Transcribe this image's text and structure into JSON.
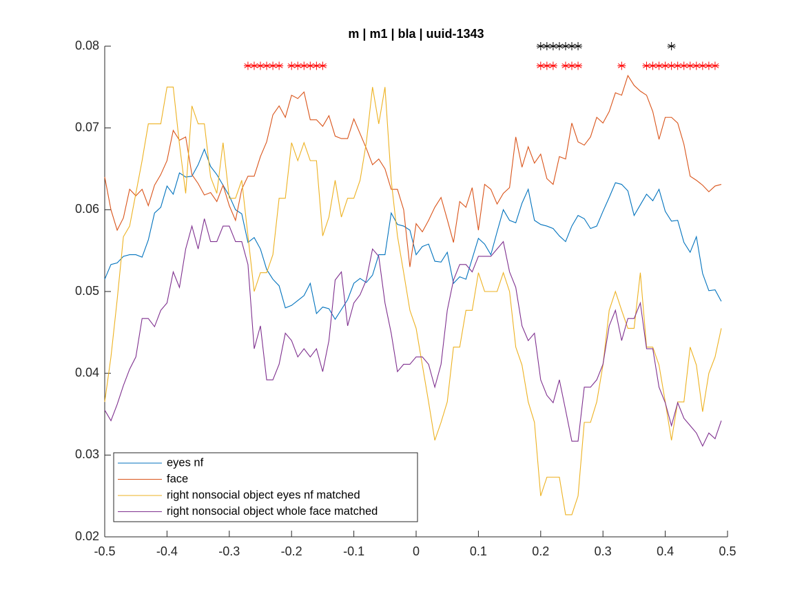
{
  "chart_data": {
    "type": "line",
    "title": "m | m1 | bla | uuid-1343",
    "x": [
      -0.5,
      -0.49,
      -0.48,
      -0.47,
      -0.46,
      -0.45,
      -0.44,
      -0.43,
      -0.42,
      -0.41,
      -0.4,
      -0.39,
      -0.38,
      -0.37,
      -0.36,
      -0.35,
      -0.34,
      -0.33,
      -0.32,
      -0.31,
      -0.3,
      -0.29,
      -0.28,
      -0.27,
      -0.26,
      -0.25,
      -0.24,
      -0.23,
      -0.22,
      -0.21,
      -0.2,
      -0.19,
      -0.18,
      -0.17,
      -0.16,
      -0.15,
      -0.14,
      -0.13,
      -0.12,
      -0.11,
      -0.1,
      -0.09,
      -0.08,
      -0.07,
      -0.06,
      -0.05,
      -0.04,
      -0.03,
      -0.02,
      -0.01,
      0,
      0.01,
      0.02,
      0.03,
      0.04,
      0.05,
      0.06,
      0.07,
      0.08,
      0.09,
      0.1,
      0.11,
      0.12,
      0.13,
      0.14,
      0.15,
      0.16,
      0.17,
      0.18,
      0.19,
      0.2,
      0.21,
      0.22,
      0.23,
      0.24,
      0.25,
      0.26,
      0.27,
      0.28,
      0.29,
      0.3,
      0.31,
      0.32,
      0.33,
      0.34,
      0.35,
      0.36,
      0.37,
      0.38,
      0.39,
      0.4,
      0.41,
      0.42,
      0.43,
      0.44,
      0.45,
      0.46,
      0.47,
      0.48,
      0.49
    ],
    "series": [
      {
        "name": "eyes nf",
        "color": "#0072BD",
        "values": [
          0.0515,
          0.0533,
          0.0535,
          0.0543,
          0.0545,
          0.0545,
          0.0542,
          0.0563,
          0.0596,
          0.0603,
          0.0629,
          0.0619,
          0.0645,
          0.064,
          0.0641,
          0.0655,
          0.0674,
          0.0653,
          0.0643,
          0.063,
          0.0617,
          0.06,
          0.0595,
          0.056,
          0.0566,
          0.0552,
          0.0527,
          0.0515,
          0.0507,
          0.048,
          0.0483,
          0.0489,
          0.0495,
          0.051,
          0.0473,
          0.0481,
          0.0479,
          0.0466,
          0.0478,
          0.049,
          0.051,
          0.0516,
          0.0511,
          0.052,
          0.0545,
          0.0545,
          0.0596,
          0.0582,
          0.058,
          0.0575,
          0.0545,
          0.0555,
          0.0558,
          0.0537,
          0.0536,
          0.0548,
          0.051,
          0.0518,
          0.0515,
          0.054,
          0.0565,
          0.0558,
          0.0545,
          0.0573,
          0.06,
          0.0587,
          0.0584,
          0.0608,
          0.0625,
          0.0587,
          0.0582,
          0.058,
          0.0577,
          0.0568,
          0.0561,
          0.058,
          0.0593,
          0.0589,
          0.0577,
          0.058,
          0.0598,
          0.0615,
          0.0633,
          0.0631,
          0.0623,
          0.0593,
          0.0606,
          0.0619,
          0.0611,
          0.0625,
          0.0598,
          0.0586,
          0.0587,
          0.056,
          0.0548,
          0.0567,
          0.0522,
          0.0501,
          0.0502,
          0.0488
        ]
      },
      {
        "name": "face",
        "color": "#D95319",
        "values": [
          0.064,
          0.06,
          0.0575,
          0.059,
          0.0625,
          0.0617,
          0.0625,
          0.0605,
          0.063,
          0.0643,
          0.066,
          0.0697,
          0.0685,
          0.0689,
          0.0643,
          0.0632,
          0.0618,
          0.0621,
          0.061,
          0.063,
          0.0605,
          0.0587,
          0.0625,
          0.0641,
          0.0641,
          0.0665,
          0.0683,
          0.0716,
          0.0727,
          0.0713,
          0.074,
          0.0736,
          0.0744,
          0.071,
          0.071,
          0.0702,
          0.0715,
          0.069,
          0.0687,
          0.0687,
          0.0711,
          0.0693,
          0.0675,
          0.0655,
          0.0662,
          0.065,
          0.0625,
          0.0625,
          0.06,
          0.053,
          0.0583,
          0.0573,
          0.0587,
          0.0603,
          0.0615,
          0.0588,
          0.056,
          0.061,
          0.0603,
          0.0627,
          0.0575,
          0.0631,
          0.0625,
          0.0607,
          0.062,
          0.0627,
          0.0689,
          0.0652,
          0.0677,
          0.0657,
          0.0668,
          0.0638,
          0.0631,
          0.0665,
          0.0662,
          0.0706,
          0.0683,
          0.0679,
          0.0689,
          0.0713,
          0.0706,
          0.072,
          0.0743,
          0.074,
          0.0764,
          0.0752,
          0.0745,
          0.074,
          0.072,
          0.0686,
          0.0713,
          0.0713,
          0.0706,
          0.068,
          0.0641,
          0.0636,
          0.063,
          0.0622,
          0.0629,
          0.0631
        ]
      },
      {
        "name": "right nonsocial object eyes nf matched",
        "color": "#EDB120",
        "values": [
          0.0365,
          0.042,
          0.049,
          0.0567,
          0.058,
          0.062,
          0.066,
          0.0705,
          0.0705,
          0.0705,
          0.075,
          0.075,
          0.068,
          0.062,
          0.0727,
          0.0705,
          0.0705,
          0.064,
          0.062,
          0.0682,
          0.0614,
          0.0614,
          0.0636,
          0.0568,
          0.05,
          0.0523,
          0.0523,
          0.0545,
          0.0614,
          0.0614,
          0.0682,
          0.066,
          0.0682,
          0.066,
          0.066,
          0.0568,
          0.0591,
          0.0636,
          0.0591,
          0.0614,
          0.0614,
          0.0636,
          0.0682,
          0.075,
          0.0705,
          0.075,
          0.0636,
          0.0568,
          0.0523,
          0.0477,
          0.0455,
          0.041,
          0.0365,
          0.0318,
          0.034,
          0.0365,
          0.0432,
          0.0432,
          0.0477,
          0.0477,
          0.0523,
          0.05,
          0.05,
          0.05,
          0.0523,
          0.05,
          0.0432,
          0.041,
          0.0365,
          0.034,
          0.025,
          0.0273,
          0.0273,
          0.0273,
          0.0227,
          0.0227,
          0.025,
          0.034,
          0.034,
          0.0365,
          0.041,
          0.0477,
          0.05,
          0.0477,
          0.0455,
          0.0455,
          0.0523,
          0.0432,
          0.0432,
          0.041,
          0.0365,
          0.0318,
          0.0365,
          0.0365,
          0.0432,
          0.041,
          0.0353,
          0.04,
          0.042,
          0.0455
        ]
      },
      {
        "name": "right nonsocial object whole face matched",
        "color": "#7E2F8E",
        "values": [
          0.0355,
          0.0342,
          0.0362,
          0.0385,
          0.0405,
          0.042,
          0.0467,
          0.0467,
          0.0457,
          0.0477,
          0.0486,
          0.0524,
          0.0505,
          0.0552,
          0.058,
          0.0552,
          0.0589,
          0.0561,
          0.0561,
          0.058,
          0.058,
          0.0561,
          0.0561,
          0.0533,
          0.043,
          0.0458,
          0.0392,
          0.0392,
          0.0411,
          0.0449,
          0.044,
          0.042,
          0.043,
          0.042,
          0.043,
          0.0402,
          0.044,
          0.0514,
          0.0524,
          0.0458,
          0.0486,
          0.0496,
          0.0514,
          0.0552,
          0.0543,
          0.0486,
          0.0449,
          0.0402,
          0.0411,
          0.0411,
          0.042,
          0.042,
          0.0411,
          0.0383,
          0.0411,
          0.0477,
          0.0514,
          0.0533,
          0.0533,
          0.0524,
          0.0543,
          0.0543,
          0.0543,
          0.0552,
          0.0561,
          0.0524,
          0.0505,
          0.0458,
          0.044,
          0.0449,
          0.0392,
          0.0373,
          0.0364,
          0.0392,
          0.0355,
          0.0317,
          0.0317,
          0.0383,
          0.0383,
          0.0392,
          0.0411,
          0.0458,
          0.0477,
          0.044,
          0.0467,
          0.0467,
          0.0486,
          0.043,
          0.043,
          0.0383,
          0.0364,
          0.0336,
          0.0364,
          0.0345,
          0.0336,
          0.0327,
          0.0311,
          0.0327,
          0.032,
          0.0342
        ]
      }
    ],
    "significance": [
      {
        "color": "#000000",
        "y": 0.08,
        "x": [
          0.2,
          0.21,
          0.22,
          0.23,
          0.24,
          0.25,
          0.26,
          0.41
        ]
      },
      {
        "color": "#FF0000",
        "y": 0.0776,
        "x": [
          -0.27,
          -0.26,
          -0.25,
          -0.24,
          -0.23,
          -0.22,
          -0.2,
          -0.19,
          -0.18,
          -0.17,
          -0.16,
          -0.15,
          0.2,
          0.21,
          0.22,
          0.24,
          0.25,
          0.26,
          0.33,
          0.37,
          0.38,
          0.39,
          0.4,
          0.41,
          0.42,
          0.43,
          0.44,
          0.45,
          0.46,
          0.47,
          0.48
        ]
      }
    ],
    "xlim": [
      -0.5,
      0.5
    ],
    "xticks": [
      -0.5,
      -0.4,
      -0.3,
      -0.2,
      -0.1,
      0,
      0.1,
      0.2,
      0.3,
      0.4,
      0.5
    ],
    "ylim": [
      0.02,
      0.08
    ],
    "yticks": [
      0.02,
      0.03,
      0.04,
      0.05,
      0.06,
      0.07,
      0.08
    ],
    "legend": "southwest"
  }
}
